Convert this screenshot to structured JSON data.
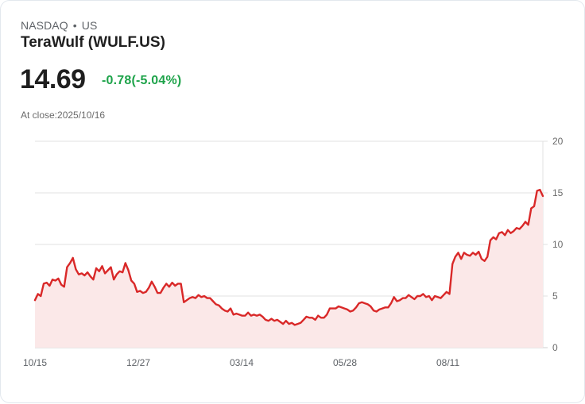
{
  "header": {
    "exchange": "NASDAQ",
    "separator": "•",
    "region": "US",
    "title": "TeraWulf (WULF.US)",
    "price": "14.69",
    "change": "-0.78(-5.04%)",
    "close_note": "At close:2025/10/16"
  },
  "colors": {
    "line": "#d92828",
    "area_fill": "#fbe8e8",
    "change_text": "#1ea34a",
    "grid": "#e2e2e2"
  },
  "chart_data": {
    "type": "area",
    "title": "TeraWulf (WULF.US)",
    "xlabel": "",
    "ylabel": "",
    "ylim": [
      0,
      20
    ],
    "yticks": [
      0,
      5,
      10,
      15,
      20
    ],
    "xtick_labels": [
      "10/15",
      "12/27",
      "03/14",
      "05/28",
      "08/11"
    ],
    "grid": true,
    "legend": "none",
    "x_range": [
      "2024/10/15",
      "2025/10/16"
    ],
    "series": [
      {
        "name": "WULF.US close",
        "values": [
          4.6,
          5.2,
          5.0,
          6.2,
          6.3,
          6.0,
          6.6,
          6.5,
          6.7,
          6.1,
          5.9,
          7.8,
          8.2,
          8.7,
          7.6,
          7.1,
          7.2,
          7.0,
          7.3,
          6.9,
          6.6,
          7.7,
          7.4,
          7.9,
          7.2,
          7.5,
          7.8,
          6.6,
          7.1,
          7.4,
          7.3,
          8.2,
          7.5,
          6.5,
          6.2,
          5.4,
          5.5,
          5.3,
          5.4,
          5.8,
          6.4,
          5.9,
          5.3,
          5.3,
          5.8,
          6.2,
          5.9,
          6.3,
          6.0,
          6.2,
          6.2,
          4.4,
          4.6,
          4.8,
          4.9,
          4.8,
          5.1,
          4.9,
          5.0,
          4.8,
          4.8,
          4.5,
          4.2,
          4.1,
          3.8,
          3.6,
          3.5,
          3.8,
          3.2,
          3.3,
          3.2,
          3.1,
          3.1,
          3.4,
          3.1,
          3.2,
          3.1,
          3.2,
          3.0,
          2.7,
          2.6,
          2.8,
          2.6,
          2.7,
          2.5,
          2.3,
          2.6,
          2.3,
          2.4,
          2.2,
          2.3,
          2.4,
          2.7,
          3.0,
          2.9,
          2.9,
          2.7,
          3.1,
          2.9,
          2.9,
          3.2,
          3.8,
          3.8,
          3.8,
          4.0,
          3.9,
          3.8,
          3.7,
          3.5,
          3.6,
          3.9,
          4.3,
          4.4,
          4.3,
          4.2,
          4.0,
          3.6,
          3.5,
          3.7,
          3.8,
          3.9,
          3.9,
          4.3,
          4.9,
          4.5,
          4.6,
          4.8,
          4.8,
          5.1,
          4.9,
          4.7,
          5.0,
          5.0,
          5.2,
          4.9,
          5.0,
          4.6,
          5.0,
          4.9,
          4.8,
          5.1,
          5.4,
          5.2,
          8.1,
          8.8,
          9.2,
          8.6,
          9.2,
          9.0,
          8.9,
          9.2,
          9.0,
          9.3,
          8.6,
          8.4,
          8.8,
          10.4,
          10.7,
          10.5,
          11.1,
          11.2,
          10.9,
          11.4,
          11.1,
          11.3,
          11.6,
          11.5,
          11.8,
          12.2,
          11.9,
          13.5,
          13.7,
          15.2,
          15.3,
          14.69
        ]
      }
    ]
  },
  "axes": {
    "y_labels": [
      "20",
      "15",
      "10",
      "5",
      "0"
    ],
    "x_labels": [
      "10/15",
      "12/27",
      "03/14",
      "05/28",
      "08/11"
    ]
  }
}
